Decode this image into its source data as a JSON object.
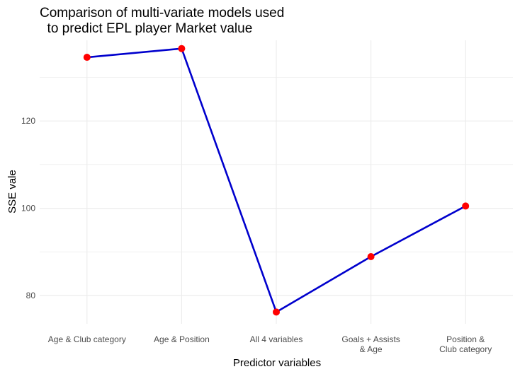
{
  "chart_data": {
    "type": "line",
    "title": "Comparison of multi-variate models used\n  to predict EPL player Market value",
    "xlabel": "Predictor variables",
    "ylabel": "SSE vale",
    "categories": [
      "Age & Club category",
      "Age & Position",
      "All 4 variables",
      "Goals + Assists\n& Age",
      "Position &\nClub category"
    ],
    "series": [
      {
        "values": [
          134.6,
          136.6,
          76.2,
          88.9,
          100.5
        ]
      }
    ],
    "yticks": [
      80,
      100,
      120
    ],
    "ylim": [
      73.5,
      138.5
    ],
    "grid": true,
    "line_color": "#0000CD",
    "point_color": "#FF0000"
  }
}
